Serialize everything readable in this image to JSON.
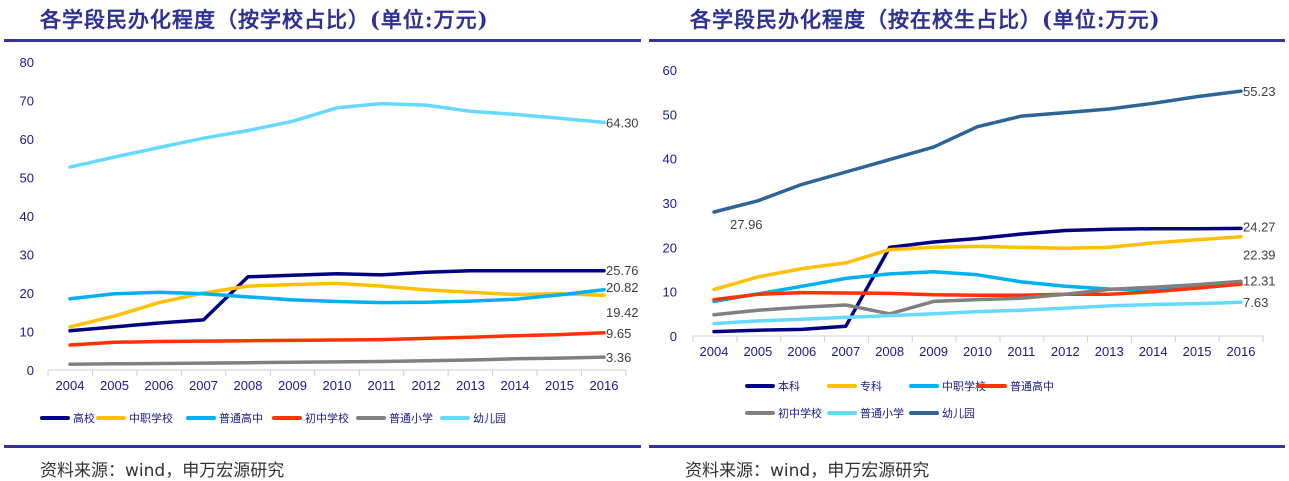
{
  "source_text": "资料来源：wind，申万宏源研究",
  "chart_data": [
    {
      "type": "line",
      "title": "各学段民办化程度（按学校占比）(单位:万元)",
      "xlabel": "",
      "ylabel": "",
      "x": [
        "2004",
        "2005",
        "2006",
        "2007",
        "2008",
        "2009",
        "2010",
        "2011",
        "2012",
        "2013",
        "2014",
        "2015",
        "2016"
      ],
      "ylim": [
        0,
        80
      ],
      "yticks": [
        0,
        10,
        20,
        30,
        40,
        50,
        60,
        70,
        80
      ],
      "grid": false,
      "legend_position": "bottom",
      "series": [
        {
          "name": "高校",
          "color": "#000080",
          "values": [
            10.2,
            11.2,
            12.2,
            13.0,
            24.2,
            24.6,
            25.0,
            24.7,
            25.4,
            25.8,
            25.8,
            25.8,
            25.76
          ],
          "end_label": "25.76"
        },
        {
          "name": "中职学校",
          "color": "#ffc000",
          "values": [
            11.2,
            14.0,
            17.5,
            20.0,
            21.8,
            22.2,
            22.5,
            21.8,
            20.8,
            20.2,
            19.6,
            19.8,
            19.42
          ],
          "end_label": "19.42"
        },
        {
          "name": "普通高中",
          "color": "#00b0f0",
          "values": [
            18.5,
            19.8,
            20.2,
            19.8,
            19.0,
            18.2,
            17.8,
            17.5,
            17.6,
            17.9,
            18.4,
            19.5,
            20.82
          ],
          "end_label": "20.82"
        },
        {
          "name": "初中学校",
          "color": "#ff3300",
          "values": [
            6.5,
            7.2,
            7.4,
            7.5,
            7.6,
            7.7,
            7.8,
            7.9,
            8.2,
            8.5,
            8.9,
            9.2,
            9.65
          ],
          "end_label": "9.65"
        },
        {
          "name": "普通小学",
          "color": "#808080",
          "values": [
            1.5,
            1.6,
            1.7,
            1.8,
            1.9,
            2.0,
            2.1,
            2.2,
            2.4,
            2.6,
            2.9,
            3.1,
            3.36
          ],
          "end_label": "3.36"
        },
        {
          "name": "幼儿园",
          "color": "#66d9ff",
          "values": [
            52.7,
            55.3,
            57.8,
            60.2,
            62.2,
            64.6,
            68.1,
            69.2,
            68.8,
            67.2,
            66.4,
            65.4,
            64.3
          ],
          "end_label": "64.30"
        }
      ]
    },
    {
      "type": "line",
      "title": "各学段民办化程度（按在校生占比）(单位:万元)",
      "xlabel": "",
      "ylabel": "",
      "x": [
        "2004",
        "2005",
        "2006",
        "2007",
        "2008",
        "2009",
        "2010",
        "2011",
        "2012",
        "2013",
        "2014",
        "2015",
        "2016"
      ],
      "ylim": [
        0,
        60
      ],
      "yticks": [
        0,
        10,
        20,
        30,
        40,
        50,
        60
      ],
      "grid": false,
      "legend_position": "bottom",
      "series": [
        {
          "name": "本科",
          "color": "#000080",
          "values": [
            1.0,
            1.3,
            1.5,
            2.2,
            20.0,
            21.2,
            22.0,
            23.0,
            23.8,
            24.1,
            24.2,
            24.2,
            24.27
          ],
          "end_label": "24.27"
        },
        {
          "name": "专科",
          "color": "#ffc000",
          "values": [
            10.5,
            13.3,
            15.2,
            16.5,
            19.5,
            20.0,
            20.2,
            20.0,
            19.8,
            20.0,
            21.0,
            21.7,
            22.39
          ],
          "end_label": "22.39"
        },
        {
          "name": "中职学校",
          "color": "#00b0f0",
          "values": [
            7.8,
            9.5,
            11.2,
            13.0,
            14.0,
            14.5,
            13.8,
            12.2,
            11.2,
            10.6,
            10.4,
            11.0,
            11.8
          ],
          "end_label": ""
        },
        {
          "name": "普通高中",
          "color": "#ff3300",
          "values": [
            8.2,
            9.4,
            9.8,
            9.7,
            9.6,
            9.3,
            9.2,
            9.2,
            9.4,
            9.4,
            10.0,
            10.8,
            11.7
          ],
          "end_label": ""
        },
        {
          "name": "初中学校",
          "color": "#808080",
          "values": [
            4.8,
            5.8,
            6.5,
            7.0,
            5.0,
            7.8,
            8.2,
            8.5,
            9.4,
            10.5,
            11.0,
            11.6,
            12.31
          ],
          "end_label": "12.31"
        },
        {
          "name": "普通小学",
          "color": "#66d9ff",
          "values": [
            2.8,
            3.4,
            3.8,
            4.2,
            4.6,
            5.0,
            5.5,
            5.8,
            6.3,
            6.8,
            7.1,
            7.3,
            7.63
          ],
          "end_label": "7.63"
        },
        {
          "name": "幼儿园",
          "color": "#2e6496",
          "values": [
            27.96,
            30.5,
            34.2,
            37.0,
            39.8,
            42.6,
            47.2,
            49.6,
            50.4,
            51.2,
            52.5,
            54.0,
            55.23
          ],
          "end_label": "55.23",
          "start_label": "27.96"
        }
      ]
    }
  ]
}
